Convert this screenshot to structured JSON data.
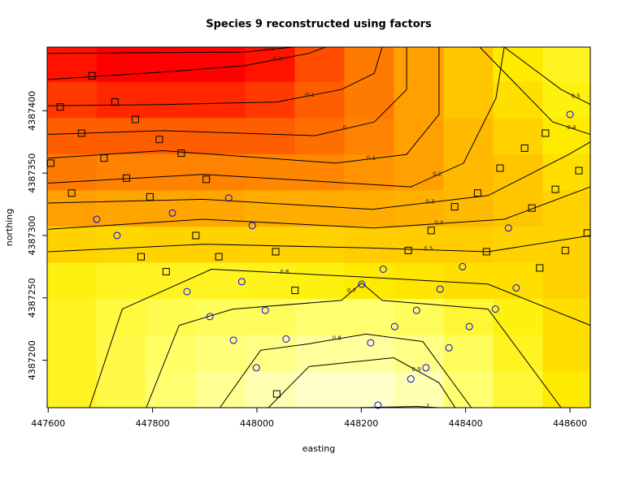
{
  "chart_data": {
    "type": "contour",
    "title": "Species 9 reconstructed using factors",
    "xlabel": "easting",
    "ylabel": "northing",
    "xlim": [
      447598,
      448639
    ],
    "ylim": [
      4387162,
      4387451
    ],
    "xticks": [
      447600,
      447800,
      448000,
      448200,
      448400,
      448600
    ],
    "yticks": [
      4387200,
      4387250,
      4387300,
      4387350,
      4387400
    ],
    "zlim": [
      -0.3,
      1.05
    ],
    "colors": [
      "#ff0000",
      "#ff6600",
      "#ffaa00",
      "#ffee00",
      "#ffff66",
      "#ffffdd"
    ],
    "grid_x": [
      447645,
      447740,
      447835,
      447930,
      448025,
      448120,
      448215,
      448310,
      448405,
      448500,
      448595
    ],
    "grid_y": [
      4387177,
      4387206,
      4387235,
      4387264,
      4387293,
      4387322,
      4387351,
      4387380,
      4387409,
      4387438
    ],
    "z": [
      [
        0.6,
        0.7,
        0.8,
        0.88,
        0.95,
        1.0,
        1.0,
        0.95,
        0.8,
        0.65,
        0.5
      ],
      [
        0.6,
        0.7,
        0.78,
        0.82,
        0.85,
        0.9,
        0.9,
        0.85,
        0.75,
        0.6,
        0.45
      ],
      [
        0.6,
        0.68,
        0.72,
        0.75,
        0.75,
        0.8,
        0.8,
        0.75,
        0.65,
        0.55,
        0.45
      ],
      [
        0.55,
        0.6,
        0.6,
        0.6,
        0.58,
        0.55,
        0.5,
        0.48,
        0.45,
        0.45,
        0.4
      ],
      [
        0.4,
        0.42,
        0.4,
        0.4,
        0.4,
        0.4,
        0.38,
        0.38,
        0.38,
        0.4,
        0.4
      ],
      [
        0.2,
        0.22,
        0.22,
        0.23,
        0.25,
        0.25,
        0.25,
        0.27,
        0.3,
        0.35,
        0.4
      ],
      [
        0.05,
        0.08,
        0.08,
        0.08,
        0.1,
        0.1,
        0.15,
        0.2,
        0.3,
        0.35,
        0.45
      ],
      [
        -0.05,
        -0.05,
        -0.05,
        -0.05,
        -0.05,
        0,
        0.08,
        0.2,
        0.3,
        0.4,
        0.5
      ],
      [
        -0.15,
        -0.2,
        -0.2,
        -0.2,
        -0.15,
        -0.05,
        0.05,
        0.2,
        0.35,
        0.45,
        0.55
      ],
      [
        -0.25,
        -0.3,
        -0.3,
        -0.3,
        -0.25,
        -0.1,
        0.05,
        0.2,
        0.35,
        0.5,
        0.6
      ]
    ],
    "contours": [
      {
        "level": -0.3,
        "x": [
          447600,
          447976,
          448070
        ],
        "y": [
          4387446,
          4387447,
          4387451
        ]
      },
      {
        "level": -0.2,
        "x": [
          447600,
          447820,
          447975,
          448100,
          448131
        ],
        "y": [
          4387425,
          4387431,
          4387436,
          4387446,
          4387451
        ]
      },
      {
        "level": -0.1,
        "x": [
          447600,
          447820,
          448038,
          448162,
          448225,
          448240
        ],
        "y": [
          4387404,
          4387405,
          4387407,
          4387417,
          4387430,
          4387451
        ]
      },
      {
        "level": 0,
        "x": [
          447600,
          447820,
          448111,
          448225,
          448287,
          448287
        ],
        "y": [
          4387381,
          4387384,
          4387380,
          4387391,
          4387417,
          4387451
        ]
      },
      {
        "level": 0.1,
        "x": [
          447600,
          447820,
          448151,
          448287,
          448349,
          448349
        ],
        "y": [
          4387362,
          4387368,
          4387358,
          4387365,
          4387397,
          4387451
        ]
      },
      {
        "level": 0.2,
        "x": [
          447600,
          447897,
          448295,
          448396,
          448458,
          448474
        ],
        "y": [
          4387342,
          4387349,
          4387339,
          4387358,
          4387410,
          4387451
        ]
      },
      {
        "level": 0.3,
        "x": [
          447600,
          447897,
          448221,
          448443,
          448598,
          448639
        ],
        "y": [
          4387326,
          4387329,
          4387321,
          4387332,
          4387365,
          4387375
        ]
      },
      {
        "level": 0.4,
        "x": [
          447600,
          447897,
          448224,
          448474,
          448639
        ],
        "y": [
          4387305,
          4387313,
          4387306,
          4387313,
          4387339
        ]
      },
      {
        "level": 0.5,
        "x": [
          447600,
          447897,
          448214,
          448443,
          448639
        ],
        "y": [
          4387287,
          4387293,
          4387290,
          4387287,
          4387300
        ]
      },
      {
        "level": 0.5,
        "x": [
          448474,
          448583,
          448639
        ],
        "y": [
          4387451,
          4387417,
          4387405
        ]
      },
      {
        "level": 0.4,
        "x": [
          448427,
          448567,
          448639
        ],
        "y": [
          4387451,
          4387391,
          4387381
        ]
      },
      {
        "level": 0.6,
        "x": [
          447679,
          447742,
          447913,
          448193,
          448443,
          448639
        ],
        "y": [
          4387162,
          4387241,
          4387273,
          4387267,
          4387261,
          4387228
        ]
      },
      {
        "level": 0.7,
        "x": [
          447788,
          447851,
          447954,
          448162,
          448201,
          448240,
          448443,
          448583
        ],
        "y": [
          4387162,
          4387228,
          4387241,
          4387248,
          4387262,
          4387248,
          4387241,
          4387162
        ]
      },
      {
        "level": 0.8,
        "x": [
          447929,
          448007,
          448097,
          448209,
          448318,
          448411
        ],
        "y": [
          4387162,
          4387208,
          4387213,
          4387221,
          4387215,
          4387162
        ]
      },
      {
        "level": 0.9,
        "x": [
          448022,
          448100,
          448262,
          448349,
          448380
        ],
        "y": [
          4387162,
          4387195,
          4387202,
          4387182,
          4387162
        ]
      },
      {
        "level": 1,
        "x": [
          448193,
          448307,
          448349
        ],
        "y": [
          4387162,
          4387163,
          4387162
        ]
      }
    ],
    "series": [
      {
        "marker": "square",
        "color": "#000000",
        "x": [
          447605,
          447623,
          447645,
          447664,
          447684,
          447707,
          447728,
          447750,
          447767,
          447795,
          447778,
          447813,
          447826,
          447855,
          447883,
          447903,
          447927,
          448036,
          448073,
          448038,
          448290,
          448334,
          448379,
          448423,
          448466,
          448513,
          448527,
          448553,
          448572,
          448440,
          448542,
          448591,
          448617,
          448633
        ],
        "y": [
          4387358,
          4387403,
          4387334,
          4387382,
          4387428,
          4387362,
          4387407,
          4387346,
          4387393,
          4387331,
          4387283,
          4387377,
          4387271,
          4387366,
          4387300,
          4387345,
          4387283,
          4387287,
          4387256,
          4387173,
          4387288,
          4387304,
          4387323,
          4387334,
          4387354,
          4387370,
          4387322,
          4387382,
          4387337,
          4387287,
          4387274,
          4387288,
          4387352,
          4387302
        ]
      },
      {
        "marker": "circle",
        "color": "#0000ff",
        "x": [
          447693,
          447732,
          447838,
          447946,
          447991,
          447866,
          447910,
          447971,
          448016,
          447955,
          448056,
          447999,
          448201,
          448242,
          448218,
          448264,
          448306,
          448351,
          448394,
          448295,
          448324,
          448368,
          448407,
          448457,
          448482,
          448497,
          448600,
          448232
        ],
        "y": [
          4387313,
          4387300,
          4387318,
          4387330,
          4387308,
          4387255,
          4387235,
          4387263,
          4387240,
          4387216,
          4387217,
          4387194,
          4387261,
          4387273,
          4387214,
          4387227,
          4387240,
          4387257,
          4387275,
          4387185,
          4387194,
          4387210,
          4387227,
          4387241,
          4387306,
          4387258,
          4387397,
          4387164
        ]
      }
    ]
  }
}
